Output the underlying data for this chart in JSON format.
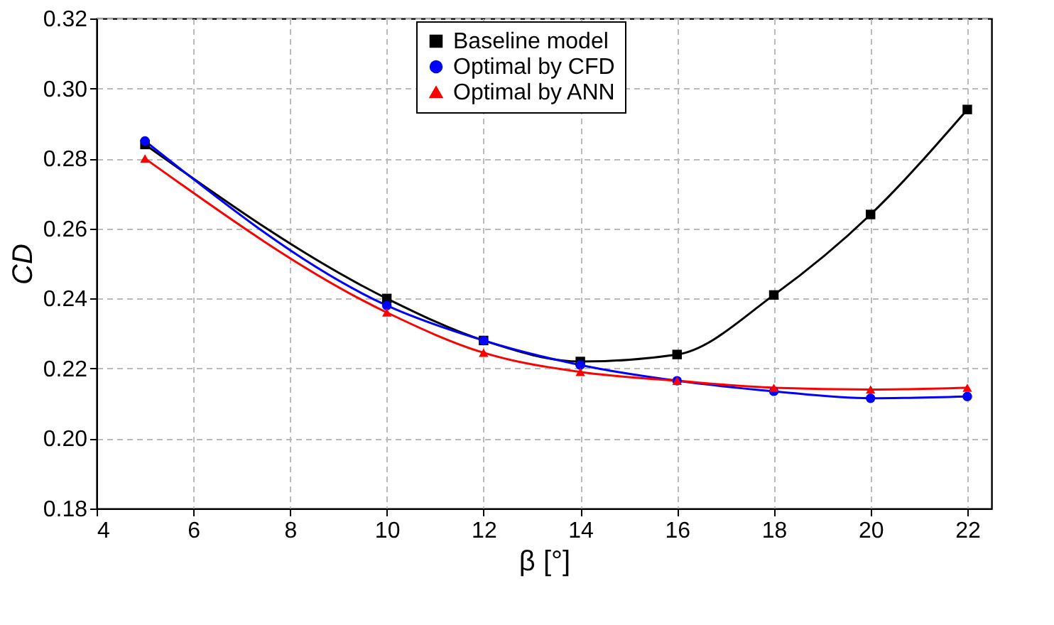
{
  "chart_data": {
    "type": "line",
    "xlabel": "β [°]",
    "ylabel": "CD",
    "x": [
      5,
      10,
      12,
      14,
      16,
      18,
      20,
      22
    ],
    "series": [
      {
        "name": "Baseline model",
        "color": "#000000",
        "marker": "square",
        "values": [
          0.284,
          0.24,
          0.228,
          0.222,
          0.224,
          0.241,
          0.264,
          0.294
        ]
      },
      {
        "name": "Optimal by CFD",
        "color": "#0000ff",
        "marker": "circle",
        "values": [
          0.285,
          0.238,
          0.228,
          0.221,
          0.2165,
          0.2135,
          0.2115,
          0.212
        ]
      },
      {
        "name": "Optimal by ANN",
        "color": "#ff0000",
        "marker": "triangle",
        "values": [
          0.28,
          0.236,
          0.2245,
          0.219,
          0.2165,
          0.2145,
          0.214,
          0.2145
        ]
      }
    ],
    "xlim": [
      4,
      22.5
    ],
    "xticks": [
      4,
      6,
      8,
      10,
      12,
      14,
      16,
      18,
      20,
      22
    ],
    "ylim": [
      0.18,
      0.32
    ],
    "yticks": [
      0.18,
      {
        "value": 0.2,
        "label": "0.20"
      },
      0.22,
      0.24,
      0.26,
      0.28,
      {
        "value": 0.3,
        "label": "0.30"
      },
      0.32
    ],
    "grid": true,
    "legend": "top",
    "line_style": "solid"
  }
}
